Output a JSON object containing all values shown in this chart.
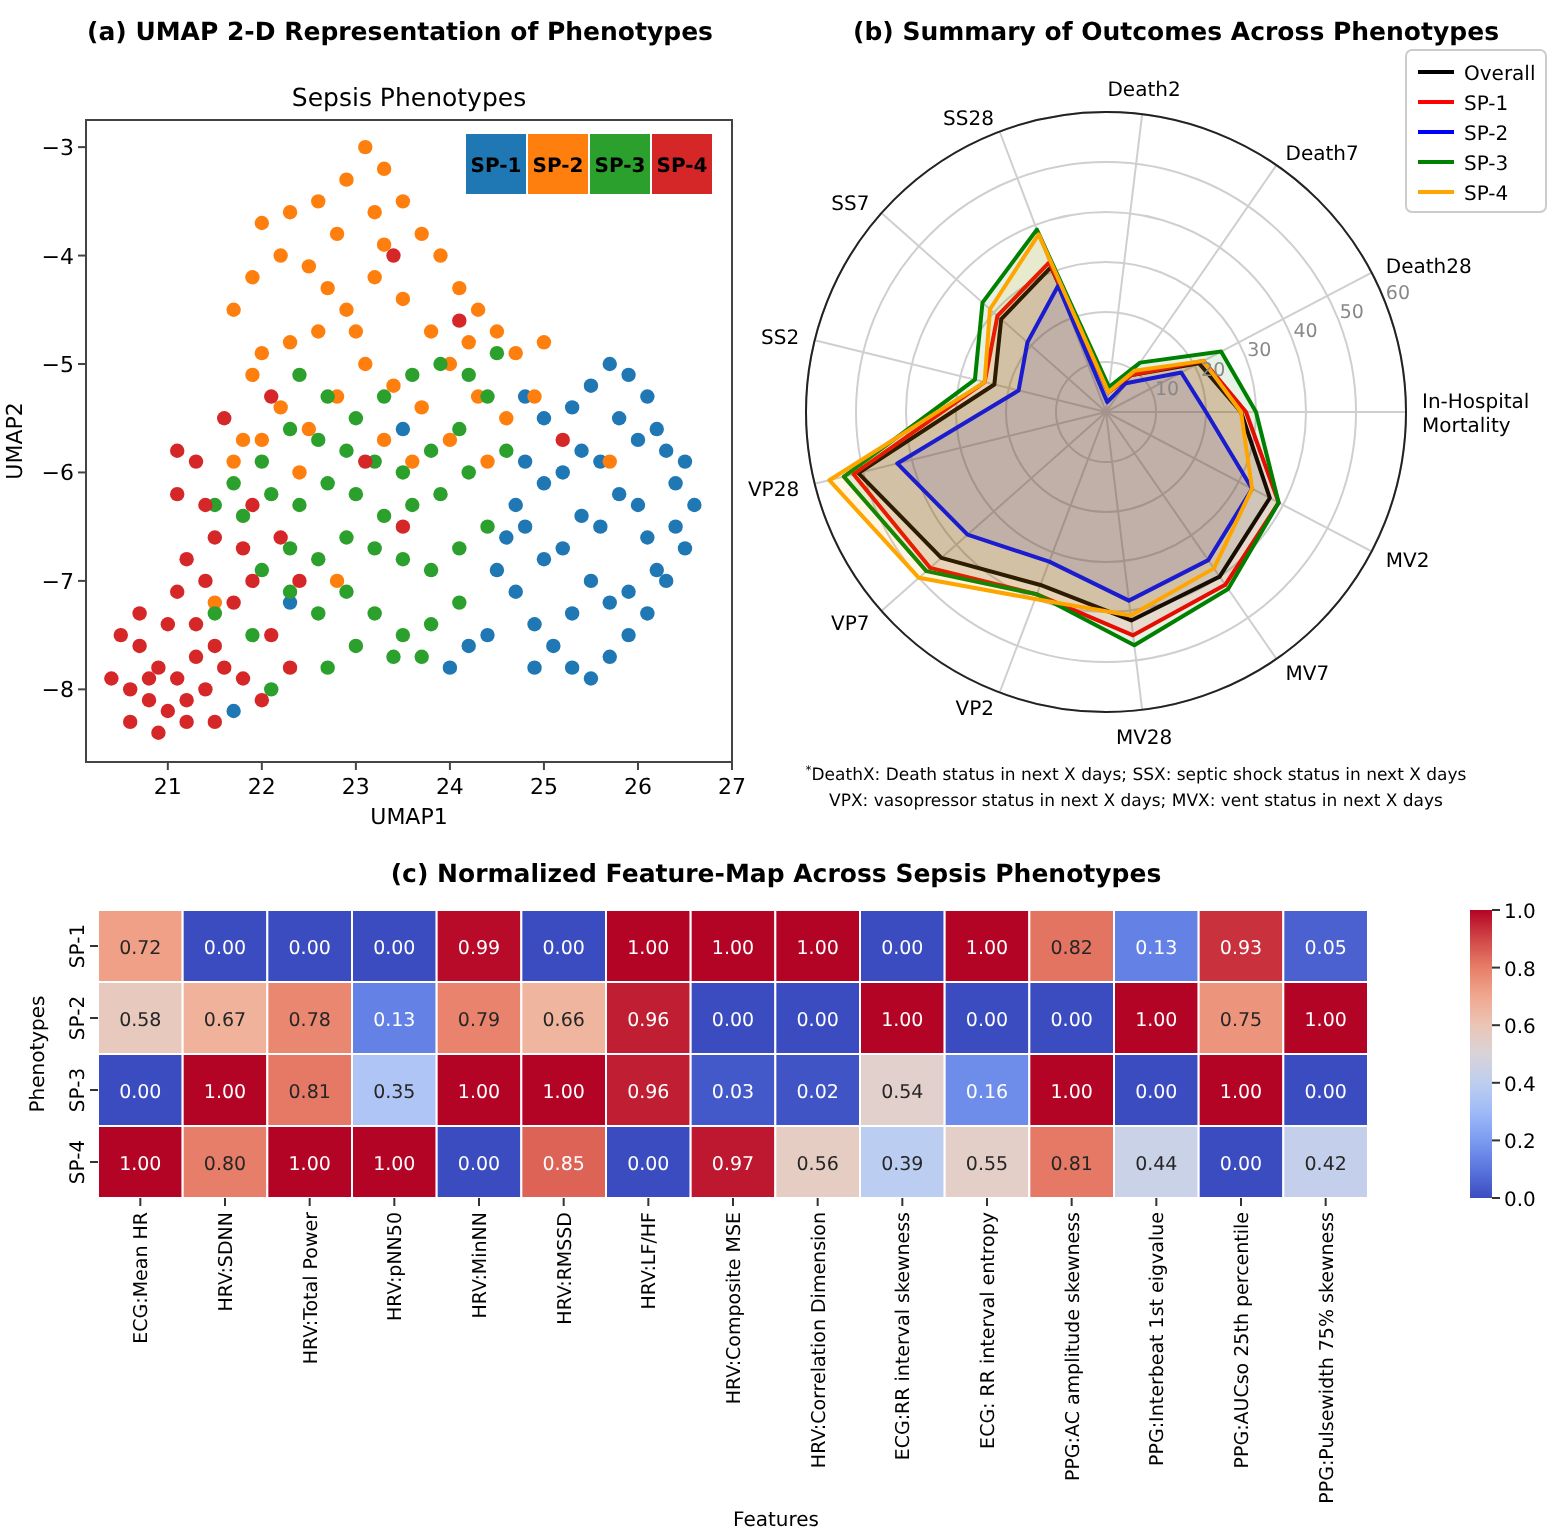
{
  "chart_data": [
    {
      "type": "scatter",
      "title": "(a) UMAP 2-D Representation of Phenotypes",
      "subtitle": "Sepsis Phenotypes",
      "xlabel": "UMAP1",
      "ylabel": "UMAP2",
      "xlim": [
        20.13,
        27
      ],
      "ylim": [
        -8.67,
        -2.75
      ],
      "xticks": [
        21,
        22,
        23,
        24,
        25,
        26,
        27
      ],
      "yticks": [
        {
          "value": -8,
          "label": "−8"
        },
        {
          "value": -7,
          "label": "−7"
        },
        {
          "value": -6,
          "label": "−6"
        },
        {
          "value": -5,
          "label": "−5"
        },
        {
          "value": -4,
          "label": "−4"
        },
        {
          "value": -3,
          "label": "−3"
        }
      ],
      "legend": "top right",
      "marker": "circle",
      "series": [
        {
          "name": "SP-1",
          "color": "#1f77b4",
          "x": [
            25.7,
            25.9,
            26.1,
            25.5,
            25.3,
            25.0,
            24.8,
            26.3,
            26.5,
            26.6,
            26.4,
            26.2,
            26.0,
            25.8,
            25.6,
            25.4,
            25.2,
            25.0,
            24.8,
            24.6,
            24.5,
            24.7,
            24.9,
            25.1,
            25.3,
            25.5,
            25.7,
            25.9,
            26.1,
            26.3,
            26.5,
            26.2,
            26.0,
            25.8,
            25.6,
            25.4,
            25.2,
            25.0,
            24.8,
            25.3,
            25.5,
            25.7,
            25.9,
            26.1,
            24.4,
            24.2,
            24.0,
            24.9,
            26.4,
            24.7,
            22.3,
            21.7,
            23.5
          ],
          "values": [
            -5.0,
            -5.1,
            -5.3,
            -5.2,
            -5.4,
            -5.5,
            -5.3,
            -5.8,
            -5.9,
            -6.3,
            -6.5,
            -5.6,
            -5.7,
            -5.5,
            -5.9,
            -5.8,
            -6.0,
            -6.1,
            -5.9,
            -6.6,
            -6.9,
            -7.1,
            -7.4,
            -7.6,
            -7.8,
            -7.9,
            -7.7,
            -7.5,
            -7.3,
            -7.0,
            -6.7,
            -6.9,
            -6.3,
            -6.2,
            -6.5,
            -6.4,
            -6.7,
            -6.8,
            -6.5,
            -7.3,
            -7.0,
            -7.2,
            -7.1,
            -6.6,
            -7.5,
            -7.6,
            -7.8,
            -7.8,
            -6.1,
            -6.3,
            -7.2,
            -8.2,
            -5.6
          ]
        },
        {
          "name": "SP-2",
          "color": "#ff7f0e",
          "x": [
            23.1,
            23.3,
            22.9,
            22.6,
            22.3,
            22.0,
            22.2,
            21.9,
            22.5,
            22.8,
            23.2,
            23.5,
            23.7,
            23.9,
            24.1,
            24.3,
            24.5,
            24.7,
            25.0,
            24.9,
            24.6,
            24.3,
            24.0,
            23.8,
            23.5,
            23.2,
            22.9,
            22.6,
            22.3,
            22.0,
            21.7,
            21.9,
            22.2,
            22.5,
            22.8,
            23.1,
            23.4,
            23.7,
            24.0,
            23.6,
            23.3,
            22.0,
            21.7,
            22.4,
            23.0,
            23.3,
            22.7,
            24.2,
            24.4,
            21.8,
            22.8,
            21.5,
            25.7
          ],
          "values": [
            -3.0,
            -3.2,
            -3.3,
            -3.5,
            -3.6,
            -3.7,
            -4.0,
            -4.2,
            -4.1,
            -3.8,
            -3.6,
            -3.5,
            -3.8,
            -4.0,
            -4.3,
            -4.5,
            -4.7,
            -4.9,
            -4.8,
            -5.3,
            -5.5,
            -5.3,
            -5.0,
            -4.7,
            -4.4,
            -4.2,
            -4.5,
            -4.7,
            -4.8,
            -4.9,
            -4.5,
            -5.1,
            -5.4,
            -5.6,
            -5.3,
            -5.0,
            -5.2,
            -5.4,
            -5.7,
            -5.9,
            -5.7,
            -5.7,
            -5.9,
            -6.0,
            -4.7,
            -3.9,
            -4.3,
            -4.8,
            -5.9,
            -5.7,
            -7.0,
            -7.2,
            -5.9
          ]
        },
        {
          "name": "SP-3",
          "color": "#2ca02c",
          "x": [
            22.4,
            22.7,
            23.0,
            23.3,
            23.6,
            23.9,
            24.2,
            24.4,
            24.1,
            23.8,
            23.5,
            23.2,
            22.9,
            22.6,
            22.3,
            22.0,
            21.7,
            21.5,
            21.8,
            22.1,
            22.4,
            22.7,
            23.0,
            23.3,
            23.6,
            23.9,
            24.2,
            24.4,
            24.1,
            23.8,
            23.5,
            23.2,
            22.9,
            22.6,
            22.3,
            22.0,
            22.3,
            22.6,
            22.9,
            23.2,
            23.5,
            23.8,
            24.1,
            23.7,
            23.4,
            23.0,
            22.7,
            21.5,
            21.9,
            22.1,
            24.5,
            24.6
          ],
          "values": [
            -5.1,
            -5.3,
            -5.5,
            -5.3,
            -5.1,
            -5.0,
            -5.1,
            -5.3,
            -5.6,
            -5.8,
            -6.0,
            -5.9,
            -5.8,
            -5.7,
            -5.6,
            -5.9,
            -6.1,
            -6.3,
            -6.4,
            -6.2,
            -6.3,
            -6.1,
            -6.2,
            -6.4,
            -6.3,
            -6.2,
            -6.0,
            -6.5,
            -6.7,
            -6.9,
            -6.8,
            -6.7,
            -6.6,
            -6.8,
            -6.7,
            -6.9,
            -7.1,
            -7.3,
            -7.1,
            -7.3,
            -7.5,
            -7.4,
            -7.2,
            -7.7,
            -7.7,
            -7.6,
            -7.8,
            -7.3,
            -7.5,
            -8.0,
            -4.9,
            -5.8
          ]
        },
        {
          "name": "SP-4",
          "color": "#d62728",
          "x": [
            20.4,
            20.6,
            20.8,
            21.0,
            21.2,
            21.4,
            20.6,
            20.9,
            21.2,
            21.5,
            20.5,
            20.7,
            20.9,
            21.1,
            21.3,
            21.5,
            20.7,
            21.0,
            21.3,
            21.6,
            21.8,
            21.7,
            21.9,
            21.4,
            21.1,
            21.2,
            21.5,
            21.8,
            21.4,
            21.1,
            21.3,
            21.1,
            21.6,
            21.9,
            22.1,
            22.3,
            22.4,
            22.2,
            22.1,
            23.1,
            23.5,
            25.2,
            24.1,
            23.4,
            22.0,
            20.8
          ],
          "values": [
            -7.9,
            -8.0,
            -8.1,
            -8.2,
            -8.1,
            -8.0,
            -8.3,
            -8.4,
            -8.3,
            -8.3,
            -7.5,
            -7.6,
            -7.8,
            -7.9,
            -7.7,
            -7.6,
            -7.3,
            -7.4,
            -7.4,
            -7.8,
            -7.9,
            -7.2,
            -7.0,
            -7.0,
            -7.1,
            -6.8,
            -6.6,
            -6.7,
            -6.3,
            -6.2,
            -5.9,
            -5.8,
            -5.5,
            -6.3,
            -7.5,
            -7.8,
            -7.0,
            -6.6,
            -5.3,
            -5.9,
            -6.5,
            -5.7,
            -4.6,
            -4.0,
            -8.1,
            -7.9
          ]
        }
      ]
    },
    {
      "type": "radar",
      "title": "(b) Summary of Outcomes Across Phenotypes",
      "categories": [
        "Death2",
        "Death7",
        "Death28",
        "In-Hospital Mortality",
        "MV2",
        "MV7",
        "MV28",
        "VP2",
        "VP7",
        "VP28",
        "SS2",
        "SS7",
        "SS28"
      ],
      "ylim": [
        0,
        60
      ],
      "yticks": [
        10,
        20,
        30,
        40,
        50,
        60
      ],
      "grid": true,
      "legend": "top right",
      "annotations": [
        "$^{*}$DeathX: Death status in next X days;  SSX: septic shock status in next X days",
        "VPX: vasopressor status in next X days;  MVX: vent status in next X days"
      ],
      "series": [
        {
          "name": "Overall",
          "color": "#000000",
          "values": [
            4,
            9,
            21,
            27,
            37,
            40,
            42,
            37,
            44,
            51,
            23,
            28,
            31
          ]
        },
        {
          "name": "SP-1",
          "color": "#ff0000",
          "values": [
            4,
            9,
            22,
            28,
            39,
            42,
            45,
            39,
            47,
            52,
            25,
            29,
            32
          ]
        },
        {
          "name": "SP-2",
          "color": "#0000ff",
          "values": [
            2,
            7,
            17,
            20,
            33,
            36,
            38,
            32,
            37,
            43,
            18,
            21,
            27
          ]
        },
        {
          "name": "SP-3",
          "color": "#008000",
          "values": [
            5,
            12,
            26,
            30,
            39,
            43,
            47,
            39,
            48,
            54,
            27,
            33,
            39
          ]
        },
        {
          "name": "SP-4",
          "color": "#ffa500",
          "values": [
            4,
            10,
            22,
            27,
            33,
            38,
            41,
            40,
            50,
            57,
            25,
            31,
            38
          ]
        }
      ]
    },
    {
      "type": "heatmap",
      "title": "(c) Normalized Feature-Map Across Sepsis Phenotypes",
      "xlabel": "Features",
      "ylabel": "Phenotypes",
      "categories": [
        "ECG:Mean HR",
        "HRV:SDNN",
        "HRV:Total Power",
        "HRV:pNN50",
        "HRV:MinNN",
        "HRV:RMSSD",
        "HRV:LF/HF",
        "HRV:Composite MSE",
        "HRV:Correlation Dimension",
        "ECG:RR interval skewness",
        "ECG: RR interval entropy",
        "PPG:AC amplitude skewness",
        "PPG:Interbeat 1st eigvalue",
        "PPG:AUCso 25th percentile",
        "PPG:Pulsewidth 75% skewness"
      ],
      "y_categories": [
        "SP-1",
        "SP-2",
        "SP-3",
        "SP-4"
      ],
      "clim": [
        0,
        1
      ],
      "cticks": [
        {
          "value": 0,
          "label": "0.0"
        },
        {
          "value": 0.2,
          "label": "0.2"
        },
        {
          "value": 0.4,
          "label": "0.4"
        },
        {
          "value": 0.6,
          "label": "0.6"
        },
        {
          "value": 0.8,
          "label": "0.8"
        },
        {
          "value": 1,
          "label": "1.0"
        }
      ],
      "cells": [
        [
          0.72,
          0.0,
          0.0,
          0.0,
          0.99,
          0.0,
          1.0,
          1.0,
          1.0,
          0.0,
          1.0,
          0.82,
          0.13,
          0.93,
          0.05
        ],
        [
          0.58,
          0.67,
          0.78,
          0.13,
          0.79,
          0.66,
          0.96,
          0.0,
          0.0,
          1.0,
          0.0,
          0.0,
          1.0,
          0.75,
          1.0
        ],
        [
          0.0,
          1.0,
          0.81,
          0.35,
          1.0,
          1.0,
          0.96,
          0.03,
          0.02,
          0.54,
          0.16,
          1.0,
          0.0,
          1.0,
          0.0
        ],
        [
          1.0,
          0.8,
          1.0,
          1.0,
          0.0,
          0.85,
          0.0,
          0.97,
          0.56,
          0.39,
          0.55,
          0.81,
          0.44,
          0.0,
          0.42
        ]
      ],
      "cell_labels": [
        [
          "0.72",
          "0.00",
          "0.00",
          "0.00",
          "0.99",
          "0.00",
          "1.00",
          "1.00",
          "1.00",
          "0.00",
          "1.00",
          "0.82",
          "0.13",
          "0.93",
          "0.05"
        ],
        [
          "0.58",
          "0.67",
          "0.78",
          "0.13",
          "0.79",
          "0.66",
          "0.96",
          "0.00",
          "0.00",
          "1.00",
          "0.00",
          "0.00",
          "1.00",
          "0.75",
          "1.00"
        ],
        [
          "0.00",
          "1.00",
          "0.81",
          "0.35",
          "1.00",
          "1.00",
          "0.96",
          "0.03",
          "0.02",
          "0.54",
          "0.16",
          "1.00",
          "0.00",
          "1.00",
          "0.00"
        ],
        [
          "1.00",
          "0.80",
          "1.00",
          "1.00",
          "0.00",
          "0.85",
          "0.00",
          "0.97",
          "0.56",
          "0.39",
          "0.55",
          "0.81",
          "0.44",
          "0.00",
          "0.42"
        ]
      ]
    }
  ]
}
